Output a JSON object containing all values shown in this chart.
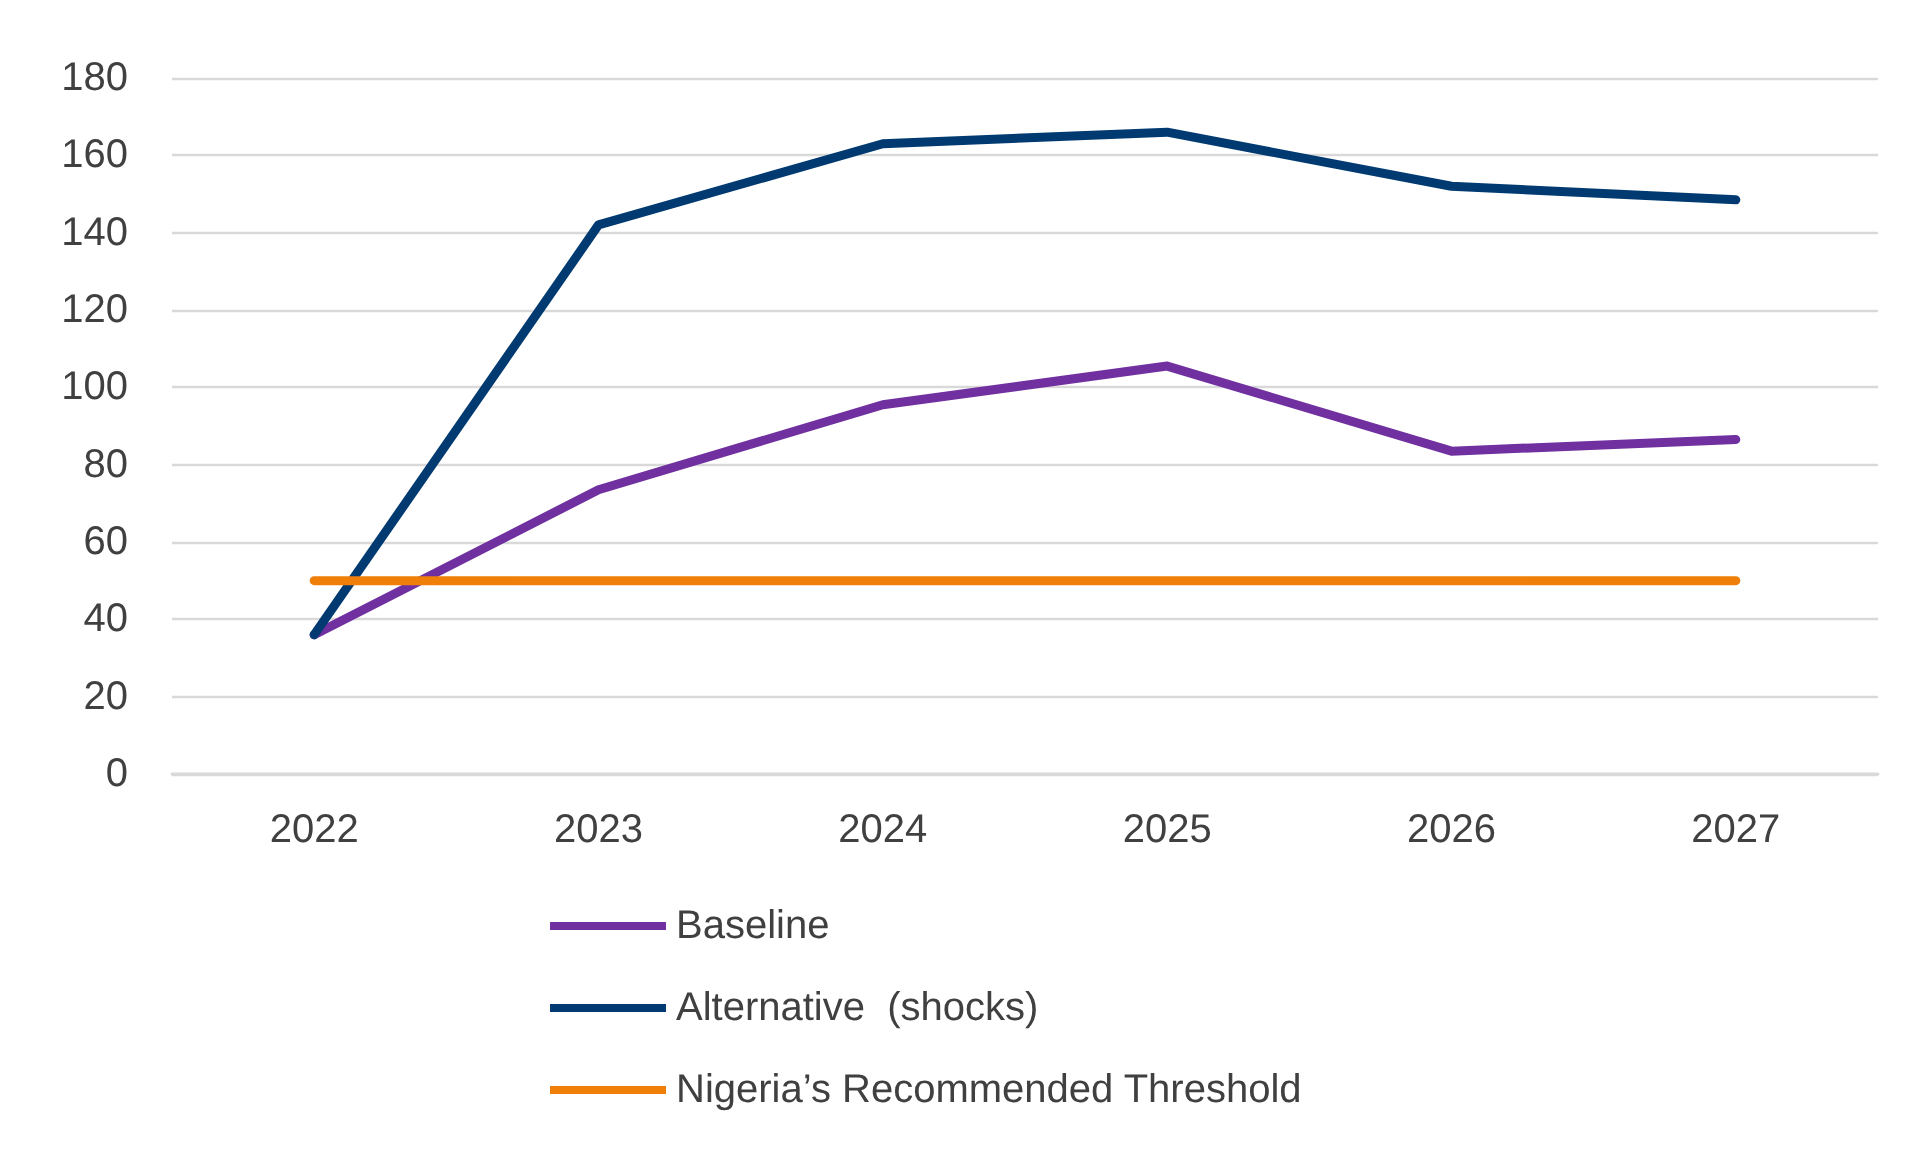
{
  "chart_data": {
    "type": "line",
    "categories": [
      "2022",
      "2023",
      "2024",
      "2025",
      "2026",
      "2027"
    ],
    "series": [
      {
        "name": "Baseline",
        "color": "#7030a0",
        "values": [
          36,
          73.5,
          95.5,
          105.5,
          83.5,
          86.5
        ]
      },
      {
        "name": "Alternative  (shocks)",
        "color": "#003a70",
        "values": [
          36,
          142,
          163,
          166,
          152,
          148.5
        ]
      },
      {
        "name": "Nigeria’s Recommended Threshold",
        "color": "#f07f09",
        "values": [
          50,
          50,
          50,
          50,
          50,
          50
        ]
      }
    ],
    "ylim": [
      0,
      180
    ],
    "yticks": [
      0,
      20,
      40,
      60,
      80,
      100,
      120,
      140,
      160,
      180
    ],
    "grid": "y",
    "legend": "bottom",
    "marker": "none",
    "line_style": "solid"
  }
}
